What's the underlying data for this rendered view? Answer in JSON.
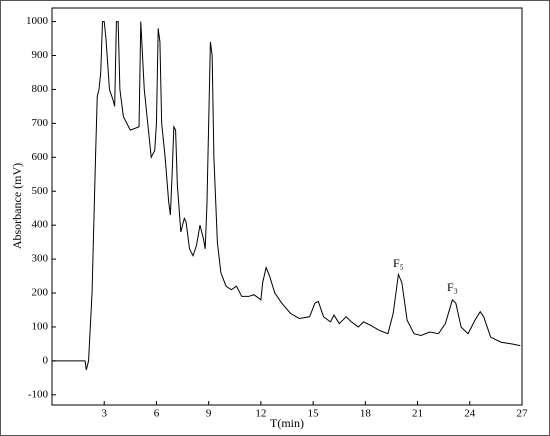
{
  "chart_data": {
    "type": "line",
    "y_label": "Absorbance (mV)",
    "x_label": "T(min)",
    "x": [
      0,
      1.9,
      1.97,
      2.1,
      2.3,
      2.5,
      2.6,
      2.7,
      2.8,
      2.9,
      3.0,
      3.1,
      3.3,
      3.5,
      3.6,
      3.7,
      3.8,
      3.9,
      4.1,
      4.5,
      5.0,
      5.1,
      5.3,
      5.5,
      5.7,
      5.9,
      6.0,
      6.1,
      6.2,
      6.3,
      6.5,
      6.7,
      6.8,
      6.9,
      7.0,
      7.1,
      7.2,
      7.4,
      7.6,
      7.7,
      7.9,
      8.1,
      8.3,
      8.5,
      8.7,
      8.8,
      8.9,
      9.0,
      9.1,
      9.2,
      9.3,
      9.5,
      9.7,
      10.0,
      10.3,
      10.6,
      10.9,
      11.3,
      11.6,
      12.0,
      12.1,
      12.3,
      12.5,
      12.8,
      13.2,
      13.7,
      14.2,
      14.8,
      15.1,
      15.3,
      15.6,
      16.0,
      16.2,
      16.5,
      16.9,
      17.2,
      17.6,
      17.9,
      18.3,
      18.8,
      19.3,
      19.6,
      19.9,
      20.1,
      20.4,
      20.8,
      21.2,
      21.7,
      22.2,
      22.6,
      23.0,
      23.2,
      23.5,
      23.9,
      24.3,
      24.6,
      24.8,
      25.2,
      25.8,
      26.4,
      26.9
    ],
    "series": [
      {
        "color": "#000000",
        "values": [
          0,
          0,
          -27,
          0,
          200,
          600,
          780,
          800,
          850,
          1000,
          1000,
          950,
          800,
          770,
          750,
          1000,
          1000,
          800,
          720,
          680,
          690,
          1000,
          800,
          700,
          600,
          620,
          700,
          980,
          940,
          700,
          600,
          470,
          430,
          550,
          690,
          680,
          520,
          380,
          420,
          410,
          330,
          310,
          340,
          400,
          360,
          330,
          460,
          700,
          940,
          900,
          600,
          350,
          260,
          220,
          210,
          220,
          190,
          190,
          195,
          180,
          230,
          275,
          250,
          200,
          170,
          140,
          125,
          130,
          170,
          175,
          130,
          115,
          135,
          110,
          130,
          115,
          100,
          115,
          105,
          90,
          80,
          140,
          255,
          230,
          120,
          80,
          75,
          85,
          80,
          110,
          180,
          170,
          100,
          80,
          120,
          145,
          130,
          70,
          55,
          50,
          45
        ]
      }
    ],
    "xlim": [
      0,
      27
    ],
    "xticks": [
      3,
      6,
      9,
      12,
      15,
      18,
      21,
      24,
      27
    ],
    "ylim": [
      -130,
      1040
    ],
    "yticks": [
      -100,
      0,
      100,
      200,
      300,
      400,
      500,
      600,
      700,
      800,
      900,
      1000
    ],
    "annotations": [
      {
        "text": "F₅",
        "x": 19.9,
        "y": 273
      },
      {
        "text": "F₃",
        "x": 23.0,
        "y": 203
      }
    ]
  }
}
